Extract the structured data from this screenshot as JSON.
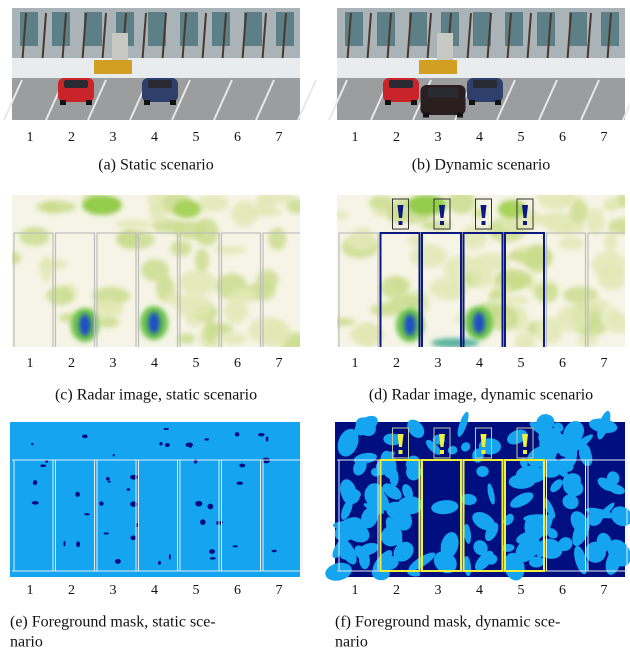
{
  "panels": [
    {
      "caption": [
        "(a) Static scenario"
      ]
    },
    {
      "caption": [
        "(b) Dynamic scenario"
      ]
    },
    {
      "caption": [
        "(c) Radar image, static scenario"
      ]
    },
    {
      "caption": [
        "(d) Radar image, dynamic scenario"
      ]
    },
    {
      "caption": [
        "(e) Foreground mask, static sce-",
        "nario"
      ]
    },
    {
      "caption": [
        "(f) Foreground mask, dynamic sce-",
        "nario"
      ]
    }
  ],
  "slot_labels": [
    "1",
    "2",
    "3",
    "4",
    "5",
    "6",
    "7"
  ]
}
